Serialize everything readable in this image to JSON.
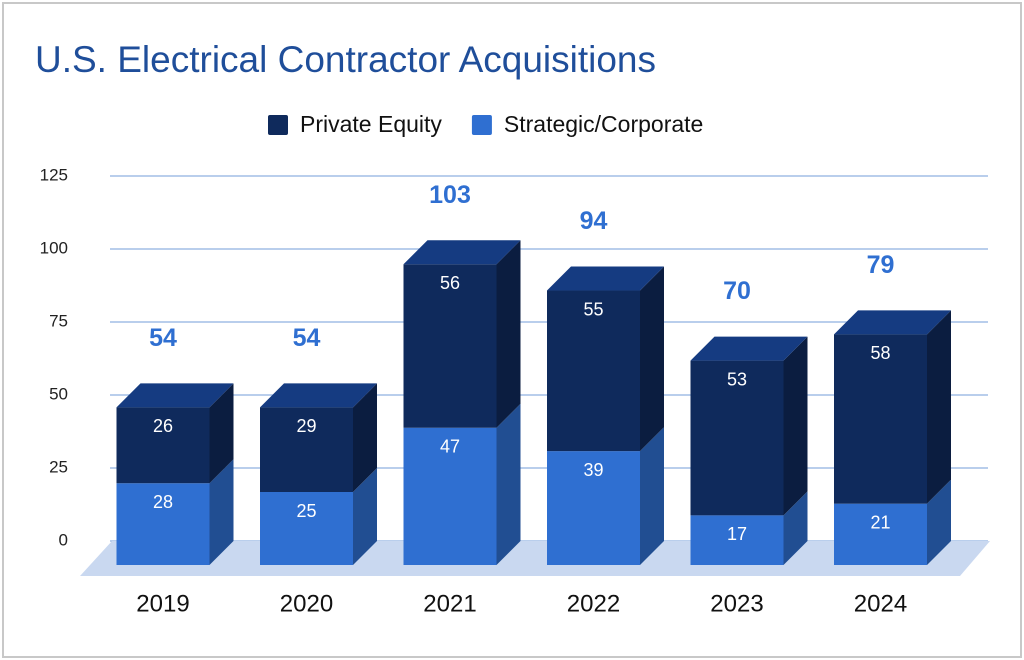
{
  "chart_data": {
    "type": "bar3d_stacked",
    "title": "U.S. Electrical Contractor Acquisitions",
    "categories": [
      "2019",
      "2020",
      "2021",
      "2022",
      "2023",
      "2024"
    ],
    "series": [
      {
        "name": "Private Equity",
        "color": "#0f2a5c",
        "values": [
          26,
          29,
          56,
          55,
          53,
          58
        ]
      },
      {
        "name": "Strategic/Corporate",
        "color": "#2f6fd1",
        "values": [
          28,
          25,
          47,
          39,
          17,
          21
        ]
      }
    ],
    "totals": [
      54,
      54,
      103,
      94,
      70,
      79
    ],
    "ylim": [
      0,
      125
    ],
    "yticks": [
      0,
      25,
      50,
      75,
      100,
      125
    ],
    "grid": true,
    "legend": "top"
  }
}
